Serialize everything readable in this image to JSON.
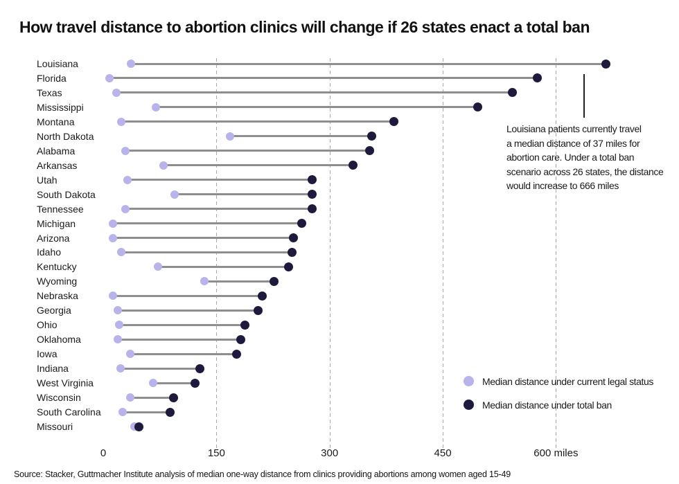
{
  "title": "How travel distance to abortion clinics will change if 26 states enact a total ban",
  "source": "Source: Stacker, Guttmacher Institute analysis of median one-way distance from clinics providing abortions among women aged 15-49",
  "annotation": {
    "text": "Louisiana patients currently travel\na median distance of 37 miles for\nabortion care. Under a total ban\nscenario across 26 states, the distance\nwould increase to 666 miles"
  },
  "colors": {
    "current_dot": "#b8b3eb",
    "ban_dot": "#1d1a3e",
    "connector": "#8e8e8e",
    "gridline": "#a8a8a8",
    "text": "#1a1a1a"
  },
  "chart_data": {
    "type": "dumbbell",
    "title": "How travel distance to abortion clinics will change if 26 states enact a total ban",
    "xlabel": "miles",
    "ylabel": "",
    "grid": "vertical-dashed",
    "legend_position": "bottom-right",
    "xlim": [
      0,
      735
    ],
    "ticks": [
      {
        "label": "0",
        "value": 0
      },
      {
        "label": "150",
        "value": 150
      },
      {
        "label": "300",
        "value": 300
      },
      {
        "label": "450",
        "value": 450
      },
      {
        "label": "600 miles",
        "value": 600
      }
    ],
    "categories": [
      "Louisiana",
      "Florida",
      "Texas",
      "Mississippi",
      "Montana",
      "North Dakota",
      "Alabama",
      "Arkansas",
      "Utah",
      "South Dakota",
      "Tennessee",
      "Michigan",
      "Arizona",
      "Idaho",
      "Kentucky",
      "Wyoming",
      "Nebraska",
      "Georgia",
      "Ohio",
      "Oklahoma",
      "Iowa",
      "Indiana",
      "West Virginia",
      "Wisconsin",
      "South Carolina",
      "Missouri"
    ],
    "series": [
      {
        "name": "Median distance under current legal status",
        "color": "#b8b3eb",
        "values": [
          37,
          8,
          17,
          70,
          24,
          168,
          29,
          80,
          32,
          95,
          29,
          13,
          13,
          24,
          73,
          134,
          13,
          19,
          21,
          19,
          36,
          23,
          66,
          36,
          26,
          41
        ]
      },
      {
        "name": "Median distance under total ban",
        "color": "#1d1a3e",
        "values": [
          666,
          575,
          542,
          496,
          385,
          356,
          353,
          331,
          277,
          277,
          277,
          263,
          252,
          250,
          246,
          226,
          211,
          205,
          188,
          182,
          177,
          128,
          122,
          93,
          89,
          47
        ]
      }
    ]
  }
}
